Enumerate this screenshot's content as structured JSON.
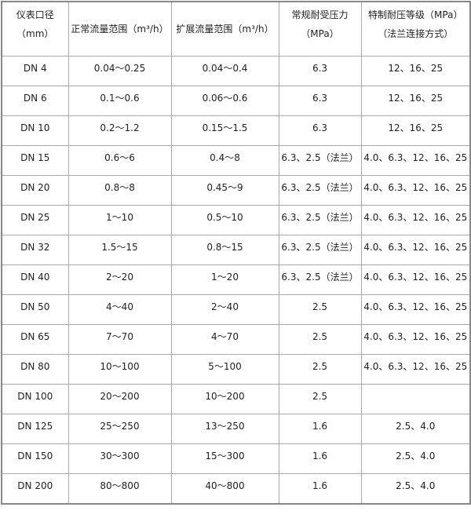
{
  "table": {
    "headers": [
      "仪表口径（mm）",
      "正常流量范围（m³/h）",
      "扩展流量范围（m³/h）",
      "常规耐受压力（MPa）",
      "特制耐压等级（MPa）（法兰连接方式）"
    ],
    "rows": [
      [
        "DN 4",
        "0.04～0.25",
        "0.04～0.4",
        "6.3",
        "12、16、25"
      ],
      [
        "DN 6",
        "0.1～0.6",
        "0.06～0.6",
        "6.3",
        "12、16、25"
      ],
      [
        "DN 10",
        "0.2～1.2",
        "0.15～1.5",
        "6.3",
        "12、16、25"
      ],
      [
        "DN 15",
        "0.6～6",
        "0.4～8",
        "6.3、2.5（法兰）",
        "4.0、6.3、12、16、25"
      ],
      [
        "DN 20",
        "0.8～8",
        "0.45～9",
        "6.3、2.5（法兰）",
        "4.0、6.3、12、16、25"
      ],
      [
        "DN 25",
        "1～10",
        "0.5～10",
        "6.3、2.5（法兰）",
        "4.0、6.3、12、16、25"
      ],
      [
        "DN 32",
        "1.5～15",
        "0.8～15",
        "6.3、2.5（法兰）",
        "4.0、6.3、12、16、25"
      ],
      [
        "DN 40",
        "2～20",
        "1～20",
        "6.3、2.5（法兰）",
        "4.0、6.3、12、16、25"
      ],
      [
        "DN 50",
        "4～40",
        "2～40",
        "2.5",
        "4.0、6.3、12、16、25"
      ],
      [
        "DN 65",
        "7～70",
        "4～70",
        "2.5",
        "4.0、6.3、12、16、25"
      ],
      [
        "DN 80",
        "10～100",
        "5～100",
        "2.5",
        "4.0、6.3、12、16、25"
      ],
      [
        "DN 100",
        "20～200",
        "10～200",
        "2.5",
        ""
      ],
      [
        "DN 125",
        "25～250",
        "13～250",
        "1.6",
        "2.5、4.0"
      ],
      [
        "DN 150",
        "30～300",
        "15～300",
        "1.6",
        "2.5、4.0"
      ],
      [
        "DN 200",
        "80～800",
        "40～800",
        "1.6",
        "2.5、4.0"
      ]
    ]
  }
}
